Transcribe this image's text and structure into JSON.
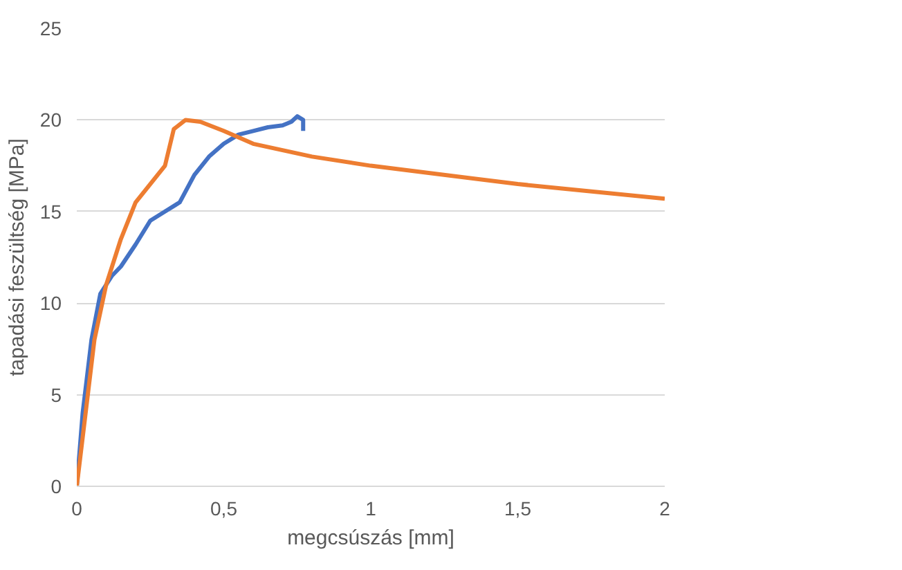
{
  "chart_data": {
    "type": "line",
    "xlabel": "megcsúszás [mm]",
    "ylabel": "tapadási feszültség [MPa]",
    "xlim": [
      0,
      2
    ],
    "ylim": [
      0,
      25
    ],
    "xticks": [
      0,
      {
        "value": 0.5,
        "label": "0,5"
      },
      1,
      {
        "value": 1.5,
        "label": "1,5"
      },
      2
    ],
    "yticks": [
      0,
      5,
      10,
      15,
      20,
      25
    ],
    "grid": "y",
    "marker": "none",
    "line_style": "solid",
    "series": [
      {
        "color": "#4472c4",
        "x": [
          0,
          0.02,
          0.05,
          0.08,
          0.12,
          0.15,
          0.2,
          0.25,
          0.3,
          0.35,
          0.4,
          0.45,
          0.5,
          0.55,
          0.6,
          0.65,
          0.7,
          0.73,
          0.75,
          0.77,
          0.77
        ],
        "values": [
          0,
          4,
          8,
          10.5,
          11.5,
          12,
          13.2,
          14.5,
          15,
          15.5,
          17,
          18,
          18.7,
          19.2,
          19.4,
          19.6,
          19.7,
          19.9,
          20.2,
          20,
          19.4
        ]
      },
      {
        "color": "#ed7d31",
        "x": [
          0,
          0.03,
          0.06,
          0.1,
          0.15,
          0.2,
          0.25,
          0.3,
          0.33,
          0.37,
          0.42,
          0.5,
          0.6,
          0.8,
          1,
          1.5,
          2
        ],
        "values": [
          0,
          4,
          8,
          11,
          13.5,
          15.5,
          16.5,
          17.5,
          19.5,
          20,
          19.9,
          19.4,
          18.7,
          18,
          17.5,
          16.5,
          15.7
        ]
      }
    ]
  }
}
